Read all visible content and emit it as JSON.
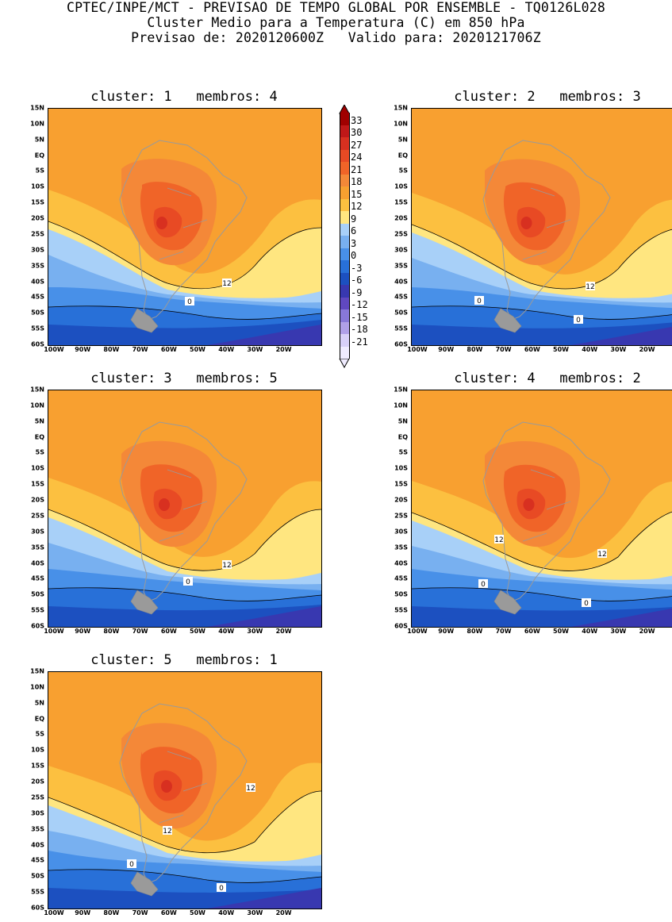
{
  "header": {
    "line1": "CPTEC/INPE/MCT - PREVISAO DE TEMPO GLOBAL POR ENSEMBLE - TQ0126L028",
    "line2": "Cluster Medio para a Temperatura (C) em 850 hPa",
    "line3": "Previsao de: 2020120600Z   Valido para: 2020121706Z"
  },
  "latitude_labels": [
    "15N",
    "10N",
    "5N",
    "EQ",
    "5S",
    "10S",
    "15S",
    "20S",
    "25S",
    "30S",
    "35S",
    "40S",
    "45S",
    "50S",
    "55S",
    "60S"
  ],
  "longitude_labels": [
    "100W",
    "90W",
    "80W",
    "70W",
    "60W",
    "50W",
    "40W",
    "30W",
    "20W"
  ],
  "panels": [
    {
      "title": "cluster: 1   membros: 4",
      "contour_labels": [
        "12",
        "0"
      ]
    },
    {
      "title": "cluster: 2   membros: 3",
      "contour_labels": [
        "12",
        "0",
        "0"
      ]
    },
    {
      "title": "cluster: 3   membros: 5",
      "contour_labels": [
        "12",
        "0"
      ]
    },
    {
      "title": "cluster: 4   membros: 2",
      "contour_labels": [
        "12",
        "12",
        "0",
        "0"
      ]
    },
    {
      "title": "cluster: 5   membros: 1",
      "contour_labels": [
        "12",
        "12",
        "0",
        "0"
      ]
    }
  ],
  "colorbar": {
    "labels": [
      "33",
      "30",
      "27",
      "24",
      "21",
      "18",
      "15",
      "12",
      "9",
      "6",
      "3",
      "0",
      "-3",
      "-6",
      "-9",
      "-12",
      "-15",
      "-18",
      "-21"
    ],
    "colors": [
      "#a00000",
      "#c01818",
      "#d83020",
      "#e84a24",
      "#f06428",
      "#f48838",
      "#f8a030",
      "#fcc040",
      "#ffe680",
      "#a8d0f8",
      "#78b0f0",
      "#4890e8",
      "#2870d8",
      "#1c50c0",
      "#3838b0",
      "#6048c0",
      "#8878d8",
      "#b0a0e8",
      "#d8d0f8",
      "#f0ecff"
    ]
  }
}
